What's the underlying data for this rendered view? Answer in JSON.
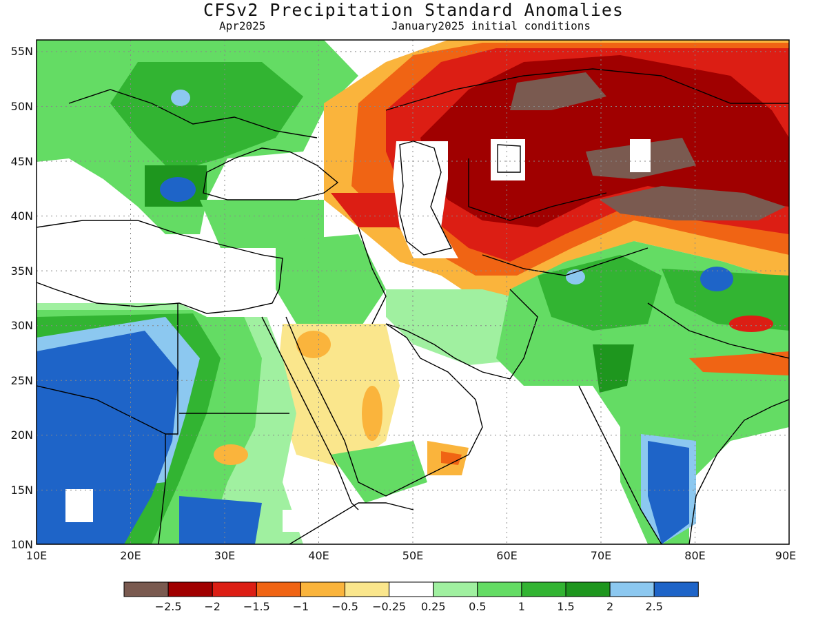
{
  "header": {
    "title": "CFSv2 Precipitation Standard Anomalies",
    "period": "Apr2025",
    "init": "January2025 initial conditions"
  },
  "axes": {
    "lat_labels": [
      "55N",
      "50N",
      "45N",
      "40N",
      "35N",
      "30N",
      "25N",
      "20N",
      "15N",
      "10N"
    ],
    "lon_labels": [
      "10E",
      "20E",
      "30E",
      "40E",
      "50E",
      "60E",
      "70E",
      "80E",
      "90E"
    ],
    "lon_range": [
      10,
      90
    ],
    "lat_range": [
      10,
      56
    ],
    "grid": "dotted"
  },
  "colorbar": {
    "labels": [
      "−2.5",
      "−2",
      "−1.5",
      "−1",
      "−0.5",
      "−0.25",
      "0.25",
      "0.5",
      "1",
      "1.5",
      "2",
      "2.5"
    ],
    "colors": [
      "#7a5a50",
      "#a00000",
      "#dc1e14",
      "#f06414",
      "#fab43c",
      "#fae68c",
      "#ffffff",
      "#a0f0a0",
      "#64dc64",
      "#32b432",
      "#1e961e",
      "#8cc8f0",
      "#1e64c8"
    ]
  }
}
